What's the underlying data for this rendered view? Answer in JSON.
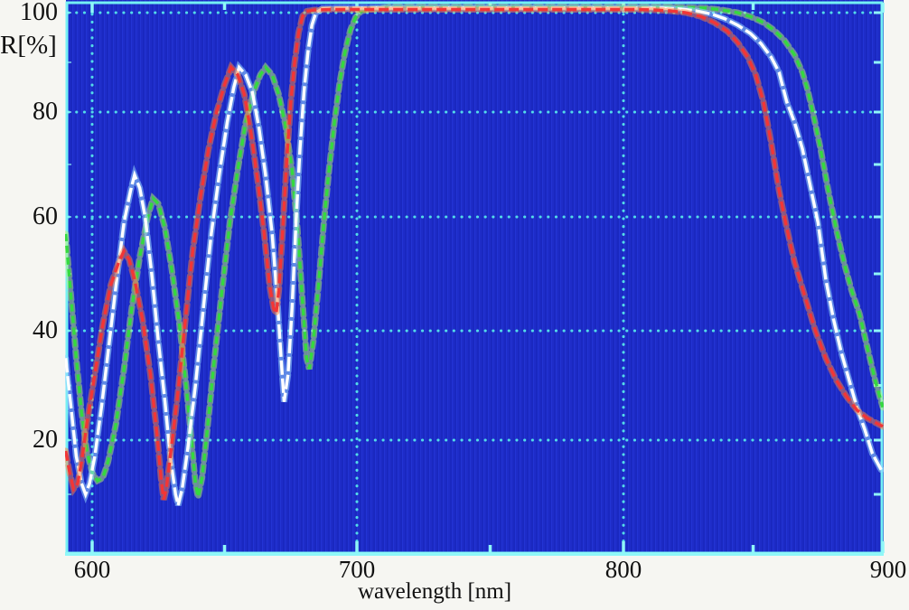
{
  "chart_data": {
    "type": "line",
    "title": "",
    "xlabel": "wavelength [nm]",
    "ylabel": "R[%]",
    "xlim": [
      590,
      900
    ],
    "ylim": [
      0,
      102
    ],
    "x_ticks": [
      600,
      700,
      800,
      900
    ],
    "x_minor_ticks": [
      650,
      750,
      850
    ],
    "y_ticks": [
      100,
      80,
      60,
      40,
      20
    ],
    "y_minor_ticks": [
      10,
      20,
      30,
      40,
      50,
      60,
      70,
      80,
      90,
      100
    ],
    "grid": "dotted cyan, on",
    "legend": "none",
    "colors": {
      "plot_background": "#1e2cc8",
      "grid_dots": "#53dbe8",
      "border": "#74f0f4",
      "tick": "#8ff7f8",
      "label_text": "#101010",
      "margin": "#f6f6f2"
    },
    "series": [
      {
        "name": "green curve",
        "color": "#35d93f",
        "halo": "rgba(190,245,110,0.5)",
        "dash": [
          8,
          5
        ],
        "points": [
          [
            590,
            57
          ],
          [
            592,
            46
          ],
          [
            594,
            35
          ],
          [
            596,
            25
          ],
          [
            598,
            18
          ],
          [
            600,
            14
          ],
          [
            602,
            12.5
          ],
          [
            604,
            13
          ],
          [
            606,
            16
          ],
          [
            609,
            23
          ],
          [
            612,
            33
          ],
          [
            615,
            44
          ],
          [
            618,
            53
          ],
          [
            621,
            60
          ],
          [
            623,
            63.5
          ],
          [
            625,
            62.5
          ],
          [
            627.5,
            58
          ],
          [
            630,
            51
          ],
          [
            633,
            41
          ],
          [
            635.5,
            30
          ],
          [
            637.5,
            20
          ],
          [
            639,
            12
          ],
          [
            640,
            9.5
          ],
          [
            641.5,
            13
          ],
          [
            643.5,
            22
          ],
          [
            646,
            34
          ],
          [
            649,
            47
          ],
          [
            652,
            59
          ],
          [
            655,
            69
          ],
          [
            658,
            78
          ],
          [
            661,
            84
          ],
          [
            663.5,
            87.5
          ],
          [
            665.5,
            89
          ],
          [
            668,
            87.5
          ],
          [
            670.5,
            83.5
          ],
          [
            673,
            77.5
          ],
          [
            675.5,
            69
          ],
          [
            677.5,
            58
          ],
          [
            679.5,
            45
          ],
          [
            681,
            35
          ],
          [
            682,
            33
          ],
          [
            683.5,
            38
          ],
          [
            685.5,
            48
          ],
          [
            687.5,
            59
          ],
          [
            689.5,
            69
          ],
          [
            691.5,
            78
          ],
          [
            693.5,
            86
          ],
          [
            695.5,
            92
          ],
          [
            697.5,
            96.5
          ],
          [
            699.5,
            99
          ],
          [
            701.5,
            100.3
          ],
          [
            705,
            100.8
          ],
          [
            712,
            101.2
          ],
          [
            730,
            101.2
          ],
          [
            760,
            101.2
          ],
          [
            790,
            101.2
          ],
          [
            820,
            101.2
          ],
          [
            832,
            101
          ],
          [
            838,
            100.6
          ],
          [
            844,
            100
          ],
          [
            849,
            99.2
          ],
          [
            854,
            98
          ],
          [
            858,
            96.5
          ],
          [
            862,
            94.5
          ],
          [
            866,
            91.5
          ],
          [
            869,
            88
          ],
          [
            871,
            84.5
          ],
          [
            873,
            80
          ],
          [
            876,
            73
          ],
          [
            879,
            65
          ],
          [
            882,
            58
          ],
          [
            885,
            52
          ],
          [
            888,
            47
          ],
          [
            891,
            43
          ],
          [
            894,
            37
          ],
          [
            897,
            31
          ],
          [
            900,
            26
          ]
        ]
      },
      {
        "name": "white curve",
        "color": "#ffffff",
        "halo": "rgba(150,215,255,0.55)",
        "dash": [
          16,
          4
        ],
        "points": [
          [
            590,
            35
          ],
          [
            592,
            26
          ],
          [
            594,
            17
          ],
          [
            596,
            12
          ],
          [
            597.5,
            10
          ],
          [
            599,
            12
          ],
          [
            601,
            17
          ],
          [
            603.5,
            26
          ],
          [
            606,
            36
          ],
          [
            609,
            48
          ],
          [
            612,
            59
          ],
          [
            614.5,
            65
          ],
          [
            616,
            68
          ],
          [
            618,
            65.5
          ],
          [
            620,
            60
          ],
          [
            622.5,
            50
          ],
          [
            625,
            38
          ],
          [
            627.5,
            27
          ],
          [
            629.5,
            17
          ],
          [
            631.5,
            10
          ],
          [
            632.5,
            8
          ],
          [
            634,
            11
          ],
          [
            636,
            18
          ],
          [
            639,
            30
          ],
          [
            642,
            44
          ],
          [
            645,
            57
          ],
          [
            648,
            68
          ],
          [
            651,
            78
          ],
          [
            653.5,
            85
          ],
          [
            655.5,
            89
          ],
          [
            658,
            87.5
          ],
          [
            660.5,
            84
          ],
          [
            663,
            77
          ],
          [
            665.5,
            68
          ],
          [
            668,
            57
          ],
          [
            670,
            45
          ],
          [
            671.5,
            34
          ],
          [
            672.5,
            27
          ],
          [
            674,
            32
          ],
          [
            675.5,
            44
          ],
          [
            677,
            59
          ],
          [
            678.5,
            73
          ],
          [
            680,
            84
          ],
          [
            681.5,
            92
          ],
          [
            683,
            97.5
          ],
          [
            684.5,
            100
          ],
          [
            687,
            100.9
          ],
          [
            692,
            101
          ],
          [
            700,
            101
          ],
          [
            730,
            101
          ],
          [
            760,
            101
          ],
          [
            790,
            101
          ],
          [
            815,
            101
          ],
          [
            822,
            100.8
          ],
          [
            828,
            100.4
          ],
          [
            834,
            99.7
          ],
          [
            839,
            98.8
          ],
          [
            844,
            97.5
          ],
          [
            849,
            95.8
          ],
          [
            853,
            93.8
          ],
          [
            857,
            91
          ],
          [
            860,
            88
          ],
          [
            863,
            82
          ],
          [
            866,
            78
          ],
          [
            869,
            73
          ],
          [
            872,
            66
          ],
          [
            875,
            59
          ],
          [
            878,
            49
          ],
          [
            881,
            42
          ],
          [
            884,
            36
          ],
          [
            887,
            31
          ],
          [
            890,
            26
          ],
          [
            893,
            22
          ],
          [
            896,
            17.5
          ],
          [
            900,
            14
          ]
        ]
      },
      {
        "name": "red curve",
        "color": "#f23636",
        "halo": "rgba(255,130,60,0.5)",
        "dash": [
          11,
          5
        ],
        "points": [
          [
            590,
            18
          ],
          [
            591.5,
            14
          ],
          [
            593,
            11
          ],
          [
            594.5,
            12
          ],
          [
            596,
            16
          ],
          [
            598,
            23
          ],
          [
            601,
            32
          ],
          [
            604,
            41
          ],
          [
            607,
            48
          ],
          [
            610,
            52
          ],
          [
            612,
            54
          ],
          [
            614,
            52.5
          ],
          [
            616,
            49
          ],
          [
            619,
            42
          ],
          [
            622,
            32
          ],
          [
            624.5,
            21
          ],
          [
            626,
            13
          ],
          [
            627,
            9
          ],
          [
            628,
            11
          ],
          [
            629.5,
            17
          ],
          [
            632,
            27
          ],
          [
            635,
            41
          ],
          [
            638,
            54
          ],
          [
            641,
            64
          ],
          [
            644,
            73
          ],
          [
            647,
            80
          ],
          [
            650,
            85.5
          ],
          [
            652.5,
            89
          ],
          [
            655,
            87.5
          ],
          [
            657.5,
            83.5
          ],
          [
            660,
            76
          ],
          [
            662.5,
            67
          ],
          [
            665,
            57
          ],
          [
            667,
            48
          ],
          [
            668.5,
            44
          ],
          [
            669.5,
            43
          ],
          [
            670.5,
            47
          ],
          [
            672,
            58
          ],
          [
            673.5,
            71
          ],
          [
            675,
            82
          ],
          [
            676.5,
            90
          ],
          [
            678,
            96
          ],
          [
            679.5,
            99.3
          ],
          [
            681,
            100.3
          ],
          [
            684,
            100.6
          ],
          [
            690,
            100.7
          ],
          [
            700,
            100.7
          ],
          [
            720,
            100.7
          ],
          [
            750,
            100.7
          ],
          [
            780,
            100.7
          ],
          [
            805,
            100.7
          ],
          [
            812,
            100.6
          ],
          [
            818,
            100.4
          ],
          [
            824,
            100
          ],
          [
            830,
            99.2
          ],
          [
            835,
            98
          ],
          [
            840,
            96.3
          ],
          [
            844,
            94
          ],
          [
            848,
            91
          ],
          [
            851,
            87.5
          ],
          [
            854,
            82
          ],
          [
            857,
            74
          ],
          [
            860,
            65
          ],
          [
            863,
            58
          ],
          [
            866,
            52
          ],
          [
            870,
            46
          ],
          [
            874,
            40
          ],
          [
            878,
            35
          ],
          [
            882,
            31
          ],
          [
            886,
            28
          ],
          [
            890,
            25.5
          ],
          [
            894,
            24
          ],
          [
            898,
            23
          ],
          [
            900,
            22.5
          ]
        ]
      }
    ]
  }
}
